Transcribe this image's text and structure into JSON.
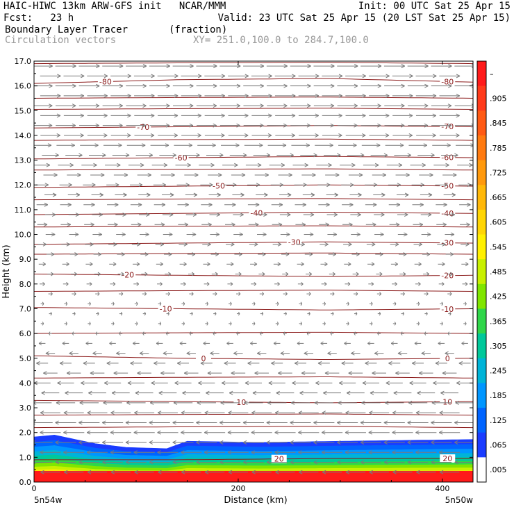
{
  "header": {
    "title_left": "HAIC-HIWC 13km ARW-GFS init   NCAR/MMM",
    "init": "Init: 00 UTC Sat 25 Apr 15",
    "fcst": "Fcst:   23 h",
    "valid": "Valid: 23 UTC Sat 25 Apr 15 (20 LST Sat 25 Apr 15)",
    "field": "Boundary Layer Tracer       (fraction)",
    "vectors": "Circulation vectors",
    "xy": "XY= 251.0,100.0 to 284.7,100.0"
  },
  "chart_data": {
    "type": "heatmap",
    "xlabel": "Distance (km)",
    "ylabel": "Height (km)",
    "xlim": [
      0,
      430
    ],
    "ylim": [
      0.0,
      17.0
    ],
    "x_ticks": [
      0,
      200,
      400
    ],
    "y_ticks": [
      "0.0",
      "1.0",
      "2.0",
      "3.0",
      "4.0",
      "5.0",
      "6.0",
      "7.0",
      "8.0",
      "9.0",
      "10.0",
      "11.0",
      "12.0",
      "13.0",
      "14.0",
      "15.0",
      "16.0",
      "17.0"
    ],
    "x_endpoint_labels": [
      "5n54w",
      "5n50w"
    ],
    "colorbar": {
      "labels": [
        "–",
        ".905",
        ".845",
        ".785",
        ".725",
        ".665",
        ".605",
        ".545",
        ".485",
        ".425",
        ".365",
        ".305",
        ".245",
        ".185",
        ".125",
        ".065",
        ".005"
      ],
      "colors": [
        "#ff1a1a",
        "#ff3a1a",
        "#ff5a14",
        "#ff7a10",
        "#ff990c",
        "#ffb808",
        "#ffd504",
        "#fff000",
        "#c8f000",
        "#80e600",
        "#2fd64a",
        "#00c89a",
        "#00b4d8",
        "#0096ff",
        "#0064ff",
        "#1a3cff",
        "#ffffff"
      ]
    },
    "tracer_top_km": [
      {
        "x": 0,
        "top": 1.82
      },
      {
        "x": 20,
        "top": 1.9
      },
      {
        "x": 60,
        "top": 1.55
      },
      {
        "x": 90,
        "top": 1.4
      },
      {
        "x": 130,
        "top": 1.35
      },
      {
        "x": 150,
        "top": 1.65
      },
      {
        "x": 220,
        "top": 1.6
      },
      {
        "x": 300,
        "top": 1.65
      },
      {
        "x": 430,
        "top": 1.72
      }
    ],
    "temperature_contours": [
      {
        "label": "-80",
        "levels": [
          16.1,
          16.25,
          16.3,
          16.15
        ]
      },
      {
        "label": "-70",
        "levels": [
          14.3,
          14.35,
          14.4,
          14.35
        ]
      },
      {
        "label": "-60",
        "levels": [
          13.05,
          13.1,
          13.15,
          13.1
        ]
      },
      {
        "label": "-50",
        "levels": [
          11.9,
          11.95,
          12.0,
          11.95
        ]
      },
      {
        "label": "-40",
        "levels": [
          10.8,
          10.85,
          10.9,
          10.85
        ]
      },
      {
        "label": "-30",
        "levels": [
          9.6,
          9.65,
          9.7,
          9.65
        ]
      },
      {
        "label": "-20",
        "levels": [
          8.4,
          8.35,
          8.3,
          8.35
        ]
      },
      {
        "label": "-10",
        "levels": [
          7.05,
          7.0,
          6.95,
          7.0
        ]
      },
      {
        "label": "0",
        "levels": [
          5.1,
          5.0,
          4.95,
          5.0
        ]
      },
      {
        "label": "10",
        "levels": [
          3.3,
          3.25,
          3.2,
          3.25
        ]
      },
      {
        "label": "20",
        "levels": [
          0.9,
          0.9,
          0.95,
          0.95
        ]
      }
    ],
    "unlabeled_contours_km": [
      16.9,
      15.5,
      15.05,
      13.8,
      12.6,
      11.4,
      10.3,
      9.2,
      7.7,
      6.0,
      4.2,
      2.2,
      2.7
    ],
    "vectors": {
      "rows_km": [
        16.8,
        16.4,
        16.0,
        15.6,
        15.2,
        14.8,
        14.4,
        14.0,
        13.6,
        13.2,
        12.8,
        12.4,
        12.0,
        11.6,
        11.2,
        10.8,
        10.4,
        10.0,
        9.6,
        9.2,
        8.8,
        8.4,
        8.0,
        7.6,
        7.2,
        6.8,
        6.4,
        6.0,
        5.6,
        5.2,
        4.8,
        4.4,
        4.0,
        3.6,
        3.2,
        2.8,
        2.4,
        2.0,
        1.6,
        1.2,
        0.8,
        0.4
      ],
      "u_profile": [
        {
          "h": 17.0,
          "u": 1.0
        },
        {
          "h": 14.0,
          "u": 0.95
        },
        {
          "h": 12.0,
          "u": 0.6
        },
        {
          "h": 10.0,
          "u": 0.45
        },
        {
          "h": 8.0,
          "u": 0.25
        },
        {
          "h": 6.5,
          "u": 0.05
        },
        {
          "h": 5.5,
          "u": -0.35
        },
        {
          "h": 4.0,
          "u": -0.8
        },
        {
          "h": 2.5,
          "u": -1.0
        },
        {
          "h": 1.0,
          "u": -1.0
        },
        {
          "h": 0.0,
          "u": -0.9
        }
      ],
      "color": "#7a7a7a"
    },
    "contour_color": "#8b1a1a",
    "grid": false
  }
}
